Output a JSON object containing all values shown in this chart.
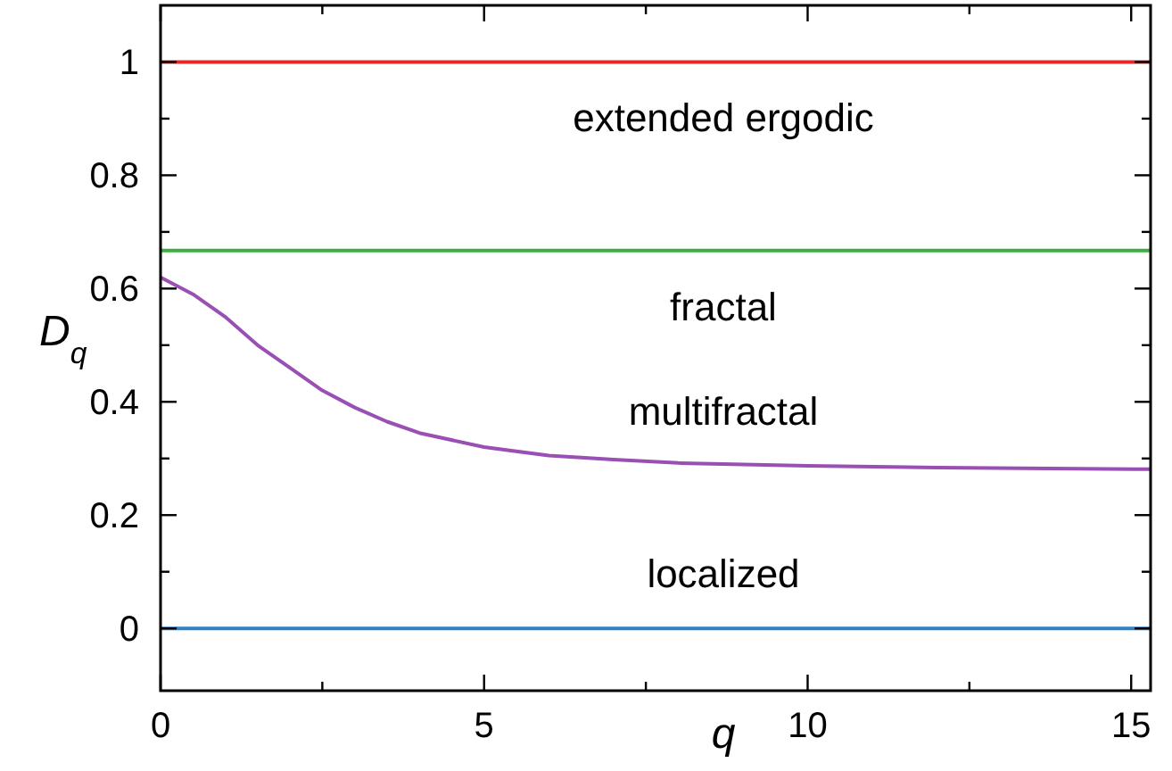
{
  "chart_data": {
    "type": "line",
    "xlabel": "q",
    "ylabel": "D$_{q}$",
    "xlim": [
      0,
      15.3
    ],
    "ylim": [
      -0.11,
      1.1
    ],
    "xticks": [
      0,
      {
        "value": 2.5,
        "label": null
      },
      5,
      {
        "value": 7.5,
        "label": null
      },
      10,
      {
        "value": 12.5,
        "label": null
      },
      15
    ],
    "yticks": [
      0,
      {
        "value": 0.1,
        "label": null
      },
      0.2,
      {
        "value": 0.3,
        "label": null
      },
      0.4,
      {
        "value": 0.5,
        "label": null
      },
      0.6,
      {
        "value": 0.7,
        "label": null
      },
      0.8,
      {
        "value": 0.9,
        "label": null
      },
      1
    ],
    "grid": false,
    "marker": "none",
    "line_style": "solid",
    "series": [
      {
        "color": "#e8262a",
        "x": [
          0,
          15.3
        ],
        "values": [
          1,
          1
        ]
      },
      {
        "color": "#3aae3e",
        "x": [
          0,
          15.3
        ],
        "values": [
          0.667,
          0.667
        ]
      },
      {
        "color": "#9a4fb4",
        "x": [
          0,
          0.5,
          1,
          1.5,
          2,
          2.5,
          3,
          3.5,
          4,
          5,
          6,
          7,
          8,
          10,
          12,
          15.3
        ],
        "values": [
          0.62,
          0.59,
          0.55,
          0.5,
          0.46,
          0.42,
          0.39,
          0.365,
          0.345,
          0.32,
          0.305,
          0.298,
          0.292,
          0.287,
          0.284,
          0.281
        ]
      },
      {
        "color": "#2f7fc1",
        "x": [
          0,
          15.3
        ],
        "values": [
          0,
          0
        ]
      }
    ],
    "annotations": [
      "extended ergodic",
      "fractal",
      "multifractal",
      "localized"
    ]
  }
}
